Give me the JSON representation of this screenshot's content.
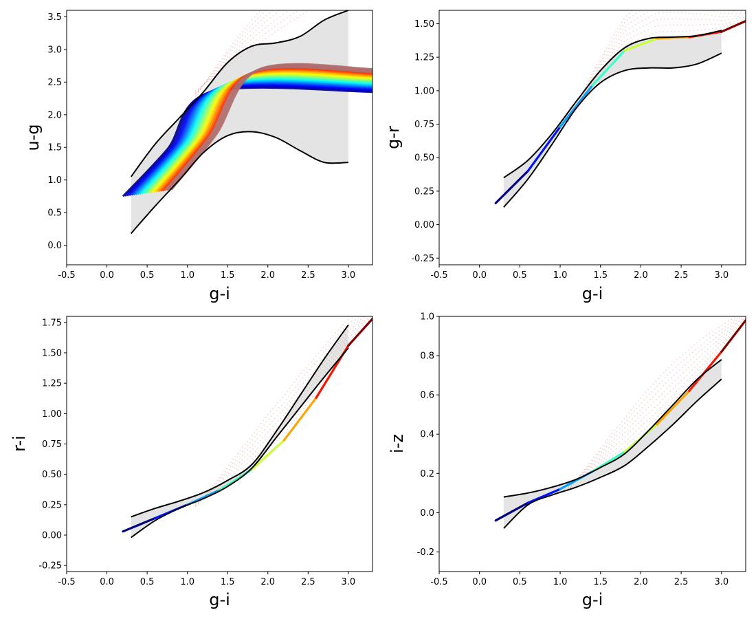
{
  "chart_data": [
    {
      "type": "scatter",
      "id": "ug",
      "xlabel": "g-i",
      "ylabel": "u-g",
      "xlim": [
        -0.5,
        3.3
      ],
      "ylim": [
        -0.3,
        3.6
      ],
      "xticks": [
        "-0.5",
        "0.0",
        "0.5",
        "1.0",
        "1.5",
        "2.0",
        "2.5",
        "3.0"
      ],
      "yticks": [
        "0.0",
        "0.5",
        "1.0",
        "1.5",
        "2.0",
        "2.5",
        "3.0",
        "3.5"
      ],
      "envelope_upper": {
        "x": [
          0.3,
          0.6,
          0.9,
          1.2,
          1.5,
          1.8,
          2.1,
          2.4,
          2.7,
          3.0
        ],
        "y": [
          1.05,
          1.55,
          1.95,
          2.35,
          2.8,
          3.05,
          3.1,
          3.2,
          3.45,
          3.6
        ]
      },
      "envelope_lower": {
        "x": [
          0.3,
          0.6,
          0.9,
          1.2,
          1.5,
          1.8,
          2.1,
          2.4,
          2.7,
          3.0
        ],
        "y": [
          0.18,
          0.6,
          1.0,
          1.42,
          1.68,
          1.74,
          1.65,
          1.45,
          1.27,
          1.27
        ]
      },
      "tracks": {
        "count": 24,
        "x_start": [
          0.2,
          0.8
        ],
        "x_knee": [
          1.3,
          1.9
        ],
        "y_start": [
          0.75,
          0.85
        ],
        "y_plateau": [
          2.35,
          2.7
        ],
        "x_end": 3.3
      }
    },
    {
      "type": "scatter",
      "id": "gr",
      "xlabel": "g-i",
      "ylabel": "g-r",
      "xlim": [
        -0.5,
        3.3
      ],
      "ylim": [
        -0.3,
        1.6
      ],
      "xticks": [
        "-0.5",
        "0.0",
        "0.5",
        "1.0",
        "1.5",
        "2.0",
        "2.5",
        "3.0"
      ],
      "yticks": [
        "-0.25",
        "0.00",
        "0.25",
        "0.50",
        "0.75",
        "1.00",
        "1.25",
        "1.50"
      ],
      "envelope_upper": {
        "x": [
          0.3,
          0.6,
          0.9,
          1.2,
          1.5,
          1.8,
          2.1,
          2.4,
          2.7,
          3.0
        ],
        "y": [
          0.35,
          0.48,
          0.68,
          0.92,
          1.15,
          1.32,
          1.39,
          1.4,
          1.41,
          1.45
        ]
      },
      "envelope_lower": {
        "x": [
          0.3,
          0.6,
          0.9,
          1.2,
          1.5,
          1.8,
          2.1,
          2.4,
          2.7,
          3.0
        ],
        "y": [
          0.13,
          0.34,
          0.6,
          0.87,
          1.06,
          1.15,
          1.17,
          1.17,
          1.2,
          1.28
        ]
      },
      "track": {
        "x": [
          0.2,
          0.6,
          1.0,
          1.4,
          1.8,
          2.2,
          2.6,
          3.0,
          3.3
        ],
        "y": [
          0.16,
          0.4,
          0.73,
          1.04,
          1.3,
          1.39,
          1.4,
          1.44,
          1.52
        ]
      }
    },
    {
      "type": "scatter",
      "id": "ri",
      "xlabel": "g-i",
      "ylabel": "r-i",
      "xlim": [
        -0.5,
        3.3
      ],
      "ylim": [
        -0.3,
        1.8
      ],
      "xticks": [
        "-0.5",
        "0.0",
        "0.5",
        "1.0",
        "1.5",
        "2.0",
        "2.5",
        "3.0"
      ],
      "yticks": [
        "-0.25",
        "0.00",
        "0.25",
        "0.50",
        "0.75",
        "1.00",
        "1.25",
        "1.50",
        "1.75"
      ],
      "envelope_upper": {
        "x": [
          0.3,
          0.6,
          0.9,
          1.2,
          1.5,
          1.8,
          2.1,
          2.4,
          2.7,
          3.0
        ],
        "y": [
          0.15,
          0.22,
          0.28,
          0.35,
          0.45,
          0.58,
          0.85,
          1.15,
          1.45,
          1.73
        ]
      },
      "envelope_lower": {
        "x": [
          0.3,
          0.6,
          0.9,
          1.2,
          1.5,
          1.8,
          2.1,
          2.4,
          2.7,
          3.0
        ],
        "y": [
          -0.02,
          0.12,
          0.22,
          0.3,
          0.4,
          0.55,
          0.8,
          1.05,
          1.3,
          1.54
        ]
      },
      "track": {
        "x": [
          0.2,
          0.6,
          1.0,
          1.4,
          1.8,
          2.2,
          2.6,
          3.0,
          3.3
        ],
        "y": [
          0.03,
          0.14,
          0.25,
          0.37,
          0.54,
          0.78,
          1.13,
          1.56,
          1.78
        ]
      }
    },
    {
      "type": "scatter",
      "id": "iz",
      "xlabel": "g-i",
      "ylabel": "i-z",
      "xlim": [
        -0.5,
        3.3
      ],
      "ylim": [
        -0.3,
        1.0
      ],
      "xticks": [
        "-0.5",
        "0.0",
        "0.5",
        "1.0",
        "1.5",
        "2.0",
        "2.5",
        "3.0"
      ],
      "yticks": [
        "-0.2",
        "0.0",
        "0.2",
        "0.4",
        "0.6",
        "0.8",
        "1.0"
      ],
      "envelope_upper": {
        "x": [
          0.3,
          0.6,
          0.9,
          1.2,
          1.5,
          1.8,
          2.1,
          2.4,
          2.7,
          3.0
        ],
        "y": [
          0.08,
          0.1,
          0.13,
          0.17,
          0.23,
          0.3,
          0.42,
          0.55,
          0.68,
          0.78
        ]
      },
      "envelope_lower": {
        "x": [
          0.3,
          0.6,
          0.9,
          1.2,
          1.5,
          1.8,
          2.1,
          2.4,
          2.7,
          3.0
        ],
        "y": [
          -0.08,
          0.04,
          0.09,
          0.13,
          0.18,
          0.24,
          0.34,
          0.45,
          0.57,
          0.68
        ]
      },
      "track": {
        "x": [
          0.2,
          0.6,
          1.0,
          1.4,
          1.8,
          2.2,
          2.6,
          3.0,
          3.3
        ],
        "y": [
          -0.04,
          0.05,
          0.12,
          0.21,
          0.31,
          0.45,
          0.62,
          0.82,
          0.98
        ]
      }
    }
  ]
}
